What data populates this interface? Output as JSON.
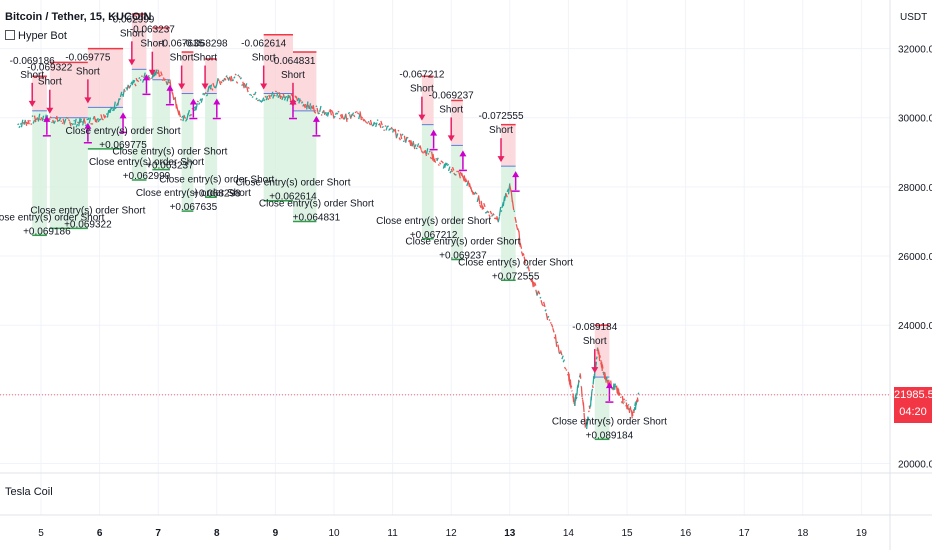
{
  "header": {
    "symbol": "Bitcoin / Tether, 15, KUCOIN",
    "indicator": "Hyper Bot",
    "currency": "USDT",
    "lower_pane": "Tesla Coil"
  },
  "last_price": {
    "value": "21985.5",
    "countdown": "04:20",
    "price": 21985.5,
    "color": "#f23645"
  },
  "colors": {
    "up": "#26a69a",
    "down": "#ef5350",
    "entry_arrow": "#e91e63",
    "exit_arrow": "#cc00cc",
    "loss_zone": "#fbd0d3",
    "profit_zone": "#d6f0dc",
    "loss_line": "#f23645",
    "profit_line": "#2e9e4a"
  },
  "chart_data": {
    "type": "line",
    "title": "Bitcoin / Tether, 15, KUCOIN",
    "x_ticks": [
      "5",
      "6",
      "7",
      "8",
      "9",
      "10",
      "11",
      "12",
      "13",
      "14",
      "15",
      "16",
      "17",
      "18",
      "19"
    ],
    "x_tick_bold": [
      "6",
      "7",
      "8",
      "9",
      "13"
    ],
    "ylim": [
      19900,
      33000
    ],
    "y_ticks": [
      20000,
      22000,
      24000,
      26000,
      28000,
      30000,
      32000
    ],
    "y_tick_labels": [
      "20000.0",
      "22000.0",
      "24000.0",
      "26000.0",
      "28000.0",
      "30000.0",
      "32000.0"
    ],
    "grid": true,
    "series": [
      {
        "x": [
          4.6,
          4.8,
          5.0,
          5.2,
          5.4,
          5.6,
          5.8,
          6.0,
          6.2,
          6.4,
          6.6,
          6.8,
          7.0,
          7.2,
          7.4,
          7.6,
          7.8,
          8.0,
          8.2,
          8.4,
          8.6,
          8.8,
          9.0,
          9.2,
          9.4,
          9.6,
          9.8,
          10.0,
          10.2,
          10.4,
          10.6,
          10.8,
          11.0,
          11.2,
          11.4,
          11.6,
          11.8,
          12.0,
          12.2,
          12.4,
          12.6,
          12.8,
          13.0,
          13.2,
          13.4,
          13.6,
          13.8,
          14.0,
          14.1,
          14.2,
          14.3,
          14.4,
          14.5,
          14.6,
          14.7,
          14.8,
          14.9,
          15.0,
          15.1,
          15.2
        ],
        "values": [
          29800,
          29900,
          30000,
          29950,
          29900,
          29850,
          29900,
          30000,
          30200,
          30700,
          31000,
          31200,
          31300,
          31000,
          29900,
          30200,
          30700,
          31000,
          31200,
          31100,
          30700,
          30500,
          30700,
          30600,
          30500,
          30300,
          30200,
          30100,
          30000,
          30100,
          29900,
          29800,
          29600,
          29400,
          29200,
          29000,
          28700,
          28500,
          28300,
          27800,
          27300,
          27100,
          28000,
          26200,
          25200,
          24500,
          23500,
          22600,
          21700,
          22500,
          21000,
          22000,
          23300,
          22600,
          22300,
          22200,
          21900,
          21700,
          21400,
          21985.5
        ]
      }
    ],
    "trades": [
      {
        "entry_x": 4.85,
        "exit_x": 5.1,
        "entry": 30200,
        "stop": 31200,
        "target": 26600,
        "entry_label": "-0.069186",
        "entry_side": "Short",
        "exit_label": "Close entry(s) order Short",
        "exit_value": "+0.069186"
      },
      {
        "entry_x": 5.15,
        "exit_x": 5.8,
        "entry": 30000,
        "stop": 31600,
        "target": 26800,
        "entry_label": "-0.069322",
        "entry_side": "Short",
        "exit_label": "Close entry(s) order Short",
        "exit_value": "+0.069322"
      },
      {
        "entry_x": 5.8,
        "exit_x": 6.4,
        "entry": 30300,
        "stop": 32000,
        "target": 29100,
        "entry_label": "-0.069775",
        "entry_side": "Short",
        "exit_label": "Close entry(s) order Short",
        "exit_value": "+0.069775"
      },
      {
        "entry_x": 6.55,
        "exit_x": 6.8,
        "entry": 31400,
        "stop": 33000,
        "target": 28200,
        "entry_label": "-0.062999",
        "entry_side": "Short",
        "exit_label": "Close entry(s) order Short",
        "exit_value": "+0.062999"
      },
      {
        "entry_x": 6.9,
        "exit_x": 7.2,
        "entry": 31100,
        "stop": 32600,
        "target": 28500,
        "entry_label": "-0.063237",
        "entry_side": "Short",
        "exit_label": "Close entry(s) order Short",
        "exit_value": "+0.063237"
      },
      {
        "entry_x": 7.4,
        "exit_x": 7.6,
        "entry": 30700,
        "stop": 31900,
        "target": 27300,
        "entry_label": "-0.067635",
        "entry_side": "Short",
        "exit_label": "Close entry(s) order Short",
        "exit_value": "+0.067635"
      },
      {
        "entry_x": 7.8,
        "exit_x": 8.0,
        "entry": 30700,
        "stop": 31700,
        "target": 27700,
        "entry_label": "-0.068298",
        "entry_side": "Short",
        "exit_label": "Close entry(s) order Short",
        "exit_value": "+0.068298"
      },
      {
        "entry_x": 8.8,
        "exit_x": 9.3,
        "entry": 30700,
        "stop": 32400,
        "target": 27600,
        "entry_label": "-0.062614",
        "entry_side": "Short",
        "exit_label": "Close entry(s) order Short",
        "exit_value": "+0.062614"
      },
      {
        "entry_x": 9.3,
        "exit_x": 9.7,
        "entry": 30200,
        "stop": 31900,
        "target": 27000,
        "entry_label": "-0.064831",
        "entry_side": "Short",
        "exit_label": "Close entry(s) order Short",
        "exit_value": "+0.064831"
      },
      {
        "entry_x": 11.5,
        "exit_x": 11.7,
        "entry": 29800,
        "stop": 31200,
        "target": 26500,
        "entry_label": "-0.067212",
        "entry_side": "Short",
        "exit_label": "Close entry(s) order Short",
        "exit_value": "+0.067212"
      },
      {
        "entry_x": 12.0,
        "exit_x": 12.2,
        "entry": 29200,
        "stop": 30500,
        "target": 25900,
        "entry_label": "-0.069237",
        "entry_side": "Short",
        "exit_label": "Close entry(s) order Short",
        "exit_value": "+0.069237"
      },
      {
        "entry_x": 12.85,
        "exit_x": 13.1,
        "entry": 28600,
        "stop": 29800,
        "target": 25300,
        "entry_label": "-0.072555",
        "entry_side": "Short",
        "exit_label": "Close entry(s) order Short",
        "exit_value": "+0.072555"
      },
      {
        "entry_x": 14.45,
        "exit_x": 14.7,
        "entry": 22500,
        "stop": 24000,
        "target": 20700,
        "entry_label": "-0.089184",
        "entry_side": "Short",
        "exit_label": "Close entry(s) order Short",
        "exit_value": "+0.089184"
      }
    ]
  }
}
